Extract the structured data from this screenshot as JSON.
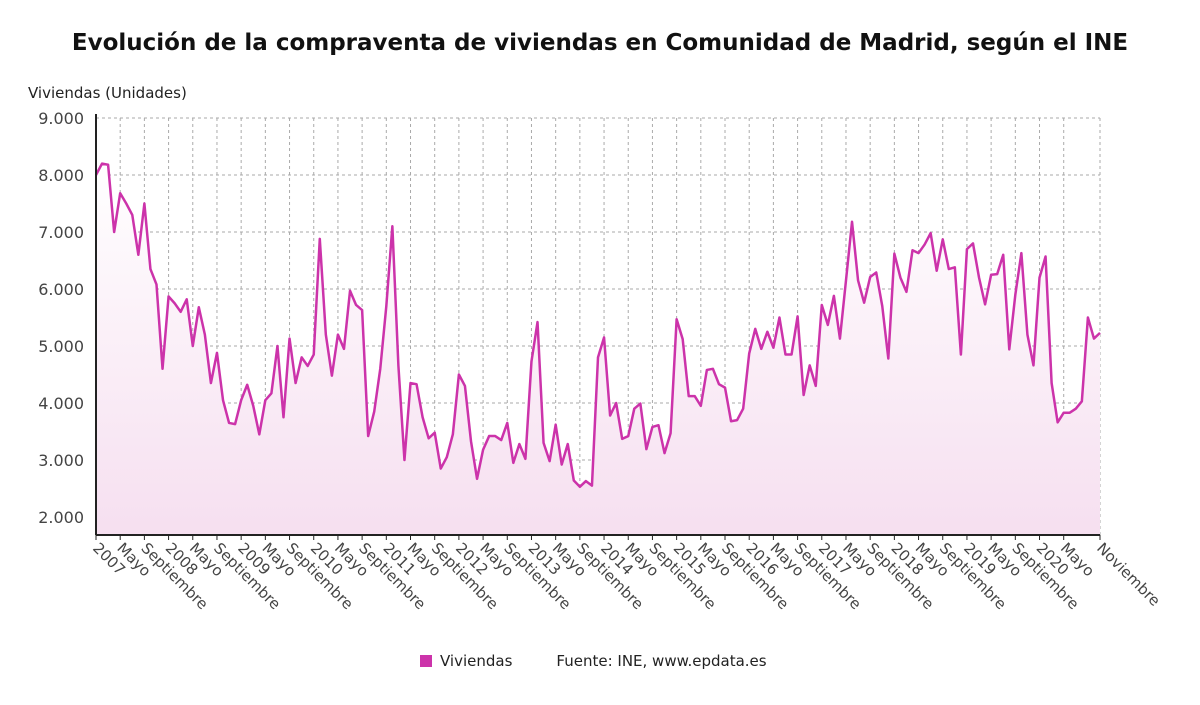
{
  "chart_data": {
    "type": "line",
    "title": "Evolución de la compraventa de viviendas en Comunidad de Madrid, según el INE",
    "ylabel": "Viviendas (Unidades)",
    "xlabel": "",
    "ylim": [
      2000,
      9000
    ],
    "yticks": [
      "2.000",
      "3.000",
      "4.000",
      "5.000",
      "6.000",
      "7.000",
      "8.000",
      "9.000"
    ],
    "ytick_values": [
      2000,
      3000,
      4000,
      5000,
      6000,
      7000,
      8000,
      9000
    ],
    "grid": true,
    "x_start": "2007-01",
    "x_end": "2020-11",
    "xtick_labels": [
      "2007",
      "Mayo",
      "Septiembre",
      "2008",
      "Mayo",
      "Septiembre",
      "2009",
      "Mayo",
      "Septiembre",
      "2010",
      "Mayo",
      "Septiembre",
      "2011",
      "Mayo",
      "Septiembre",
      "2012",
      "Mayo",
      "Septiembre",
      "2013",
      "Mayo",
      "Septiembre",
      "2014",
      "Mayo",
      "Septiembre",
      "2015",
      "Mayo",
      "Septiembre",
      "2016",
      "Mayo",
      "Septiembre",
      "2017",
      "Mayo",
      "Septiembre",
      "2018",
      "Mayo",
      "Septiembre",
      "2019",
      "Mayo",
      "Septiembre",
      "2020",
      "Mayo",
      "Noviembre"
    ],
    "xtick_months": [
      0,
      4,
      8,
      12,
      16,
      20,
      24,
      28,
      32,
      36,
      40,
      44,
      48,
      52,
      56,
      60,
      64,
      68,
      72,
      76,
      80,
      84,
      88,
      92,
      96,
      100,
      104,
      108,
      112,
      116,
      120,
      124,
      128,
      132,
      136,
      140,
      144,
      148,
      152,
      156,
      160,
      166
    ],
    "series": [
      {
        "name": "Viviendas",
        "color": "#cc33aa",
        "values": [
          8000,
          8200,
          8180,
          7000,
          7680,
          7500,
          7300,
          6600,
          7500,
          6350,
          6080,
          4600,
          5870,
          5750,
          5600,
          5820,
          5000,
          5680,
          5200,
          4350,
          4880,
          4050,
          3650,
          3630,
          4050,
          4320,
          3950,
          3450,
          4050,
          4170,
          5000,
          3750,
          5130,
          4350,
          4800,
          4650,
          4850,
          6880,
          5200,
          4480,
          5200,
          4950,
          5970,
          5720,
          5630,
          3420,
          3850,
          4600,
          5700,
          7100,
          4650,
          3000,
          4350,
          4330,
          3750,
          3380,
          3480,
          2850,
          3050,
          3450,
          4500,
          4300,
          3330,
          2670,
          3180,
          3420,
          3420,
          3350,
          3650,
          2950,
          3280,
          3020,
          4730,
          5420,
          3300,
          2980,
          3620,
          2920,
          3280,
          2640,
          2530,
          2630,
          2550,
          4800,
          5150,
          3780,
          4000,
          3370,
          3420,
          3900,
          3990,
          3190,
          3580,
          3610,
          3120,
          3470,
          5470,
          5120,
          4120,
          4120,
          3950,
          4580,
          4600,
          4330,
          4270,
          3680,
          3700,
          3900,
          4870,
          5300,
          4950,
          5250,
          4970,
          5500,
          4850,
          4850,
          5520,
          4140,
          4660,
          4300,
          5720,
          5370,
          5880,
          5130,
          6150,
          7180,
          6150,
          5760,
          6210,
          6290,
          5700,
          4780,
          6620,
          6200,
          5950,
          6680,
          6630,
          6780,
          6980,
          6320,
          6870,
          6350,
          6380,
          4850,
          6700,
          6800,
          6200,
          5730,
          6250,
          6260,
          6600,
          4940,
          5900,
          6630,
          5200,
          4660,
          6200,
          6570,
          4350,
          3660,
          3830,
          3830,
          3900,
          4030,
          5500,
          5130,
          5230
        ]
      }
    ],
    "legend": "bottom",
    "source": "Fuente: INE, www.epdata.es"
  }
}
